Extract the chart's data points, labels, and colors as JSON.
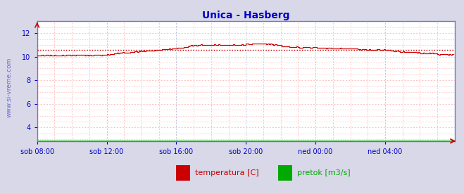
{
  "title": "Unica - Hasberg",
  "title_color": "#0000cc",
  "bg_color": "#d8d8e8",
  "plot_bg_color": "#ffffff",
  "grid_color_major": "#aaaacc",
  "grid_color_minor": "#ffaaaa",
  "axis_color": "#7777bb",
  "tick_color": "#0000cc",
  "watermark": "www.si-vreme.com",
  "watermark_color": "#5555cc",
  "yticks": [
    4,
    6,
    8,
    10,
    12
  ],
  "ylim": [
    2.8,
    13.0
  ],
  "xlim_max": 288,
  "xtick_positions": [
    0,
    48,
    96,
    144,
    192,
    240
  ],
  "xtick_labels": [
    "sob 08:00",
    "sob 12:00",
    "sob 16:00",
    "sob 20:00",
    "ned 00:00",
    "ned 04:00"
  ],
  "temp_color": "#cc0000",
  "flow_color": "#00aa00",
  "avg_value": 10.6,
  "legend_items": [
    {
      "label": "temperatura [C]",
      "color": "#cc0000"
    },
    {
      "label": "pretok [m3/s]",
      "color": "#00aa00"
    }
  ],
  "figsize": [
    6.59,
    2.76
  ],
  "dpi": 100
}
